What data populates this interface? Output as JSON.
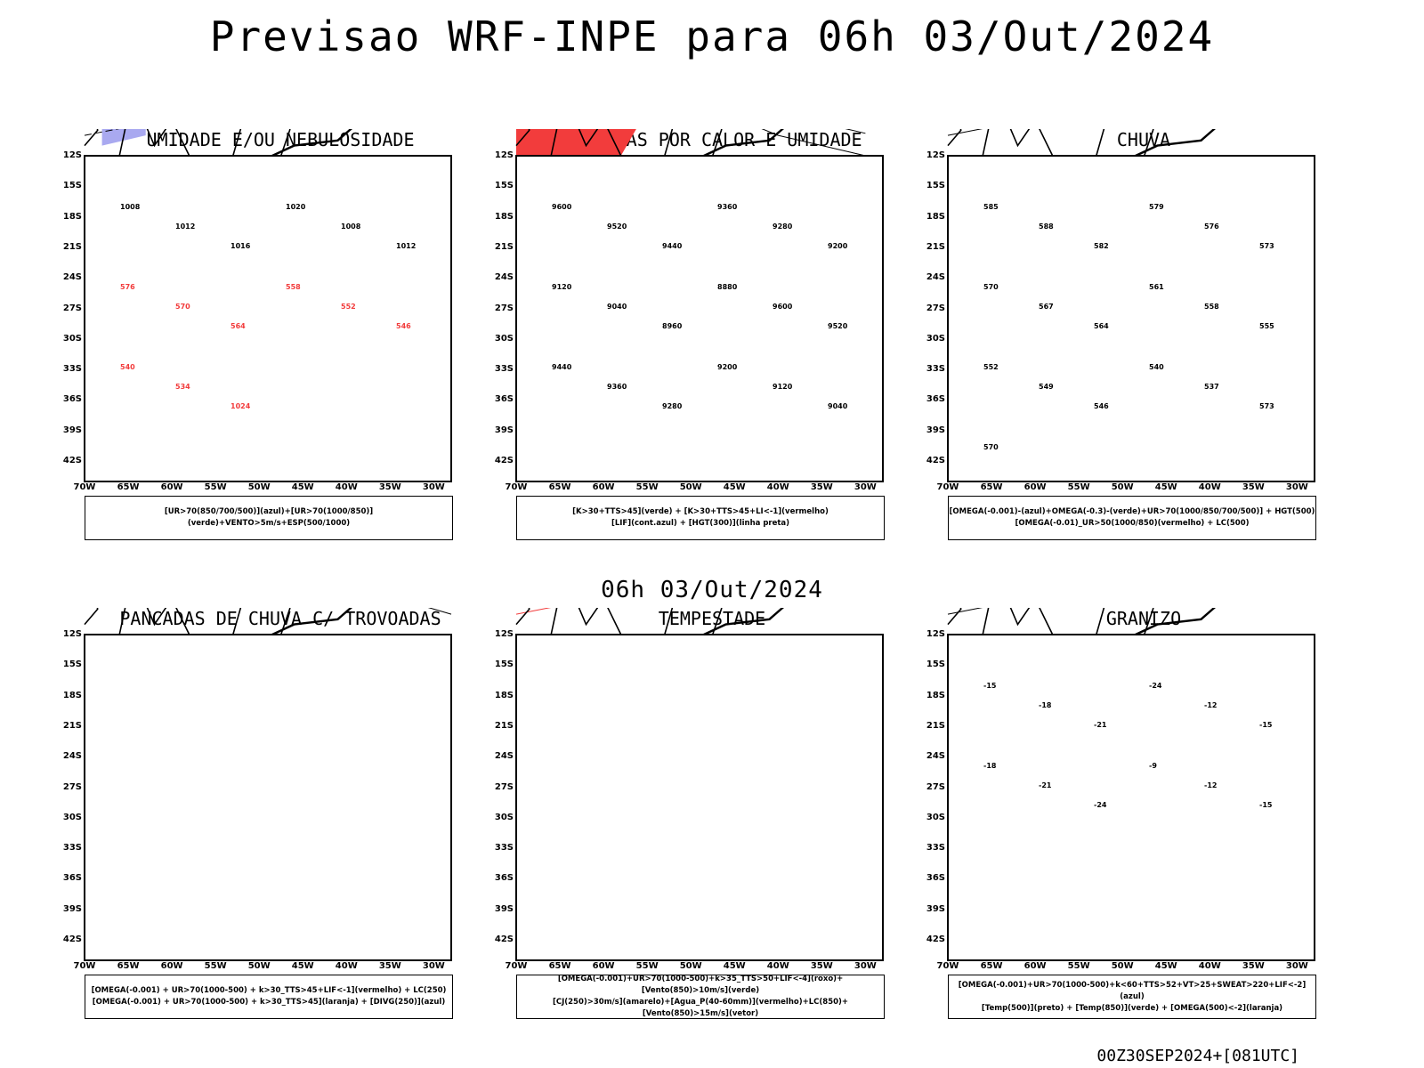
{
  "title": "Previsao WRF-INPE  para 06h 03/Out/2024",
  "mid_title": "06h 03/Out/2024",
  "footer": "00Z30SEP2024+[081UTC]",
  "lat_labels": [
    "12S",
    "15S",
    "18S",
    "21S",
    "24S",
    "27S",
    "30S",
    "33S",
    "36S",
    "39S",
    "42S"
  ],
  "lon_labels": [
    "70W",
    "65W",
    "60W",
    "55W",
    "50W",
    "45W",
    "40W",
    "35W",
    "30W"
  ],
  "panels": [
    {
      "title": "UMIDADE E/OU NEBULOSIDADE",
      "legend": [
        "[UR>70(850/700/500)](azul)+[UR>70(1000/850)](verde)+VENTO>5m/s+ESP(500/1000)"
      ],
      "labels": [
        "1008",
        "1012",
        "1016",
        "1020",
        "1008",
        "1012",
        "576",
        "570",
        "564",
        "558",
        "552",
        "546",
        "540",
        "534",
        "1024"
      ]
    },
    {
      "title": "PANCADAS POR CALOR E UMIDADE",
      "legend": [
        "[K>30+TTS>45](verde) + [K>30+TTS>45+LI<-1](vermelho)",
        "[LIF](cont.azul) + [HGT(300)](linha preta)"
      ],
      "labels": [
        "9600",
        "9520",
        "9440",
        "9360",
        "9280",
        "9200",
        "9120",
        "9040",
        "8960",
        "8880",
        "9600",
        "9520",
        "9440",
        "9360",
        "9280",
        "9200",
        "9120",
        "9040"
      ]
    },
    {
      "title": "CHUVA",
      "legend": [
        "[OMEGA(-0.001)-(azul)+OMEGA(-0.3)-(verde)+UR>70(1000/850/700/500)] + HGT(500)",
        "[OMEGA(-0.01)_UR>50(1000/850)(vermelho) + LC(500)"
      ],
      "labels": [
        "585",
        "588",
        "582",
        "579",
        "576",
        "573",
        "570",
        "567",
        "564",
        "561",
        "558",
        "555",
        "552",
        "549",
        "546",
        "540",
        "537",
        "573",
        "570"
      ]
    },
    {
      "title": "PANCADAS DE CHUVA C/ TROVOADAS",
      "legend": [
        "[OMEGA(-0.001) + UR>70(1000-500) + k>30_TTS>45+LIF<-1](vermelho) + LC(250)",
        "[OMEGA(-0.001) + UR>70(1000-500) + k>30_TTS>45](laranja) + [DIVG(250)](azul)"
      ],
      "labels": []
    },
    {
      "title": "TEMPESTADE",
      "legend": [
        "[OMEGA(-0.001)+UR>70(1000-500)+k>35_TTS>50+LIF<-4](roxo)+[Vento(850)>10m/s](verde)",
        "[CJ(250)>30m/s](amarelo)+[Agua_P(40-60mm)](vermelho)+LC(850)+[Vento(850)>15m/s](vetor)"
      ],
      "labels": []
    },
    {
      "title": "GRANIZO",
      "legend": [
        "[OMEGA(-0.001)+UR>70(1000-500)+k<60+TTS>52+VT>25+SWEAT>220+LIF<-2](azul)",
        "[Temp(500)](preto) + [Temp(850)](verde) + [OMEGA(500)<-2](laranja)"
      ],
      "labels": [
        "-15",
        "-18",
        "-21",
        "-24",
        "-12",
        "-15",
        "-18",
        "-21",
        "-24",
        "-9",
        "-12",
        "-15"
      ]
    }
  ],
  "colors": {
    "red": "#f23c3c",
    "green": "#22c922",
    "blue": "#2a3cff",
    "lavender": "#a9a9f0",
    "darkteal": "#1f4848",
    "yellow": "#e3d535",
    "orange": "#e8821a",
    "purple": "#a020d0"
  }
}
